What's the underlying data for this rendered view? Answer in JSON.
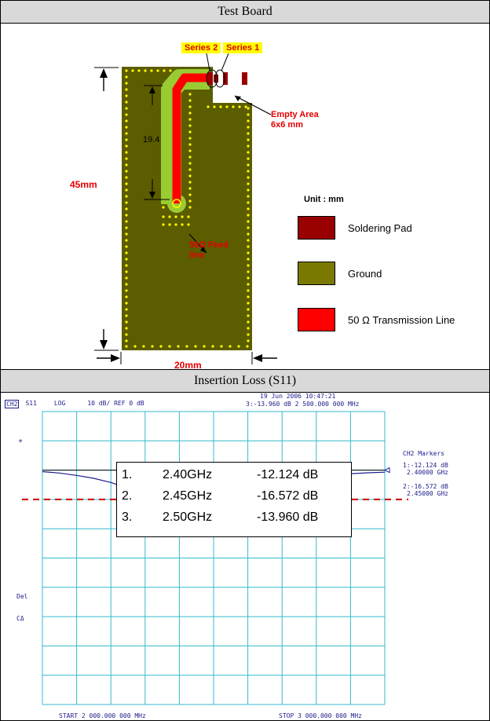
{
  "test_board": {
    "title": "Test Board",
    "series2": "Series 2",
    "series1": "Series 1",
    "empty_area": "Empty Area",
    "empty_area_size": "6x6 mm",
    "feed_line_1": "50Ω Feed",
    "feed_line_2": "line",
    "dim_height": "45mm",
    "dim_width": "20mm",
    "dim_trace": "19.4",
    "unit": "Unit : mm",
    "legend": [
      {
        "label": "Soldering Pad",
        "color": "#990000"
      },
      {
        "label": "Ground",
        "color": "#7a7a00"
      },
      {
        "label": "50 Ω Transmission Line",
        "color": "#ff0000"
      }
    ],
    "colors": {
      "board": "#5c5c00",
      "trace_outline": "#99cc33",
      "trace": "#ff0000",
      "via": "#ffff00"
    }
  },
  "insertion_loss": {
    "title": "Insertion Loss (S11)",
    "header_left": [
      "CH2",
      "S11",
      "LOG",
      "10 dB/ REF 0 dB"
    ],
    "header_date": "19 Jun 2006  10:47:21",
    "header_marker": "3:-13.960 dB   2 500.000 000 MHz",
    "side_markers_title": "CH2 Markers",
    "side_markers": [
      [
        "1:-12.124 dB",
        "2.40000 GHz"
      ],
      [
        "2:-16.572 dB",
        "2.45000 GHz"
      ]
    ],
    "left_labels": [
      "*",
      "Del",
      "CΔ"
    ],
    "start_label": "START 2 000.000 000 MHz",
    "stop_label": "STOP 3 000.000 000 MHz",
    "marker_table": [
      {
        "n": "1.",
        "freq": "2.40GHz",
        "val": "-12.124 dB"
      },
      {
        "n": "2.",
        "freq": "2.45GHz",
        "val": "-16.572 dB"
      },
      {
        "n": "3.",
        "freq": "2.50GHz",
        "val": "-13.960 dB"
      }
    ],
    "marker_ids": [
      "1",
      "2",
      "3"
    ],
    "chart_data": {
      "type": "line",
      "xlim": [
        2000,
        3000
      ],
      "ylim": [
        -80,
        20
      ],
      "x": [
        2000,
        2050,
        2100,
        2150,
        2200,
        2250,
        2300,
        2350,
        2400,
        2425,
        2450,
        2475,
        2500,
        2550,
        2600,
        2650,
        2700,
        2750,
        2800,
        2850,
        2900,
        2950,
        3000
      ],
      "y": [
        -0.5,
        -1.0,
        -1.8,
        -2.8,
        -4.2,
        -6.2,
        -8.6,
        -11.0,
        -12.124,
        -14.5,
        -16.572,
        -15.3,
        -13.96,
        -9.8,
        -7.0,
        -5.2,
        -4.0,
        -3.0,
        -2.2,
        -1.6,
        -1.2,
        -0.9,
        -0.7
      ],
      "grid": true,
      "reference_dashed_line": -10,
      "markers": [
        {
          "x": 2400,
          "y": -12.124
        },
        {
          "x": 2450,
          "y": -16.572
        },
        {
          "x": 2500,
          "y": -13.96
        }
      ],
      "trace_color": "#1c1c8c",
      "grid_color": "#33bbcc",
      "ref_color": "#cc0000"
    }
  }
}
